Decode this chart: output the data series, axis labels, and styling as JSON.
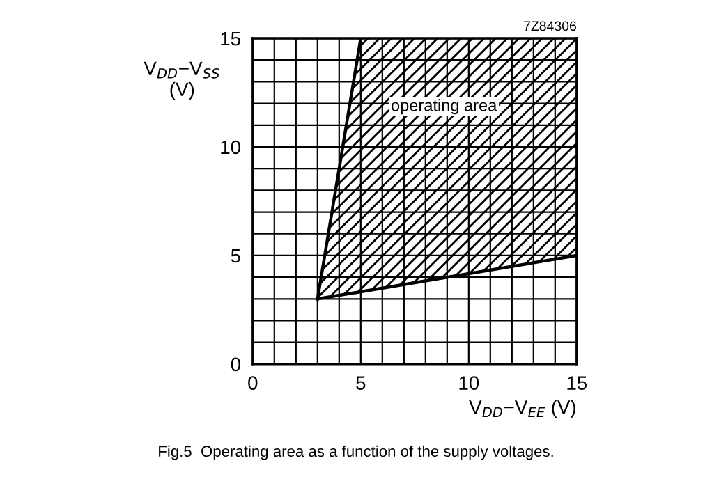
{
  "chart_data": {
    "type": "line",
    "xlabel": "V$_{DD}$−V$_{EE}$ (V)",
    "ylabel": "V$_{DD}$−V$_{SS}$\n(V)",
    "series": [
      {
        "x": [
          3,
          5
        ],
        "values": [
          3,
          15
        ],
        "color": "#000000"
      },
      {
        "x": [
          3,
          5,
          15
        ],
        "values": [
          3,
          3.33,
          5
        ],
        "lower": [
          3,
          3.33,
          5
        ],
        "upper": [
          3,
          15,
          15
        ],
        "color": "#000000"
      }
    ],
    "xlim": [
      0,
      15
    ],
    "ylim": [
      0,
      15
    ],
    "xticks": [
      0,
      {
        "value": 1,
        "label": null
      },
      {
        "value": 2,
        "label": null
      },
      {
        "value": 3,
        "label": null
      },
      {
        "value": 4,
        "label": null
      },
      5,
      {
        "value": 6,
        "label": null
      },
      {
        "value": 7,
        "label": null
      },
      {
        "value": 8,
        "label": null
      },
      {
        "value": 9,
        "label": null
      },
      10,
      {
        "value": 11,
        "label": null
      },
      {
        "value": 12,
        "label": null
      },
      {
        "value": 13,
        "label": null
      },
      {
        "value": 14,
        "label": null
      },
      15
    ],
    "yticks": [
      0,
      {
        "value": 1,
        "label": null
      },
      {
        "value": 2,
        "label": null
      },
      {
        "value": 3,
        "label": null
      },
      {
        "value": 4,
        "label": null
      },
      5,
      {
        "value": 6,
        "label": null
      },
      {
        "value": 7,
        "label": null
      },
      {
        "value": 8,
        "label": null
      },
      {
        "value": 9,
        "label": null
      },
      10,
      {
        "value": 11,
        "label": null
      },
      {
        "value": 12,
        "label": null
      },
      {
        "value": 13,
        "label": null
      },
      {
        "value": 14,
        "label": null
      },
      15
    ],
    "grid": true,
    "marker": "none",
    "line_style": "solid",
    "annotations": [
      "operating area",
      "7Z84306",
      "Fig.5  Operating area as a function of the supply voltages."
    ]
  }
}
